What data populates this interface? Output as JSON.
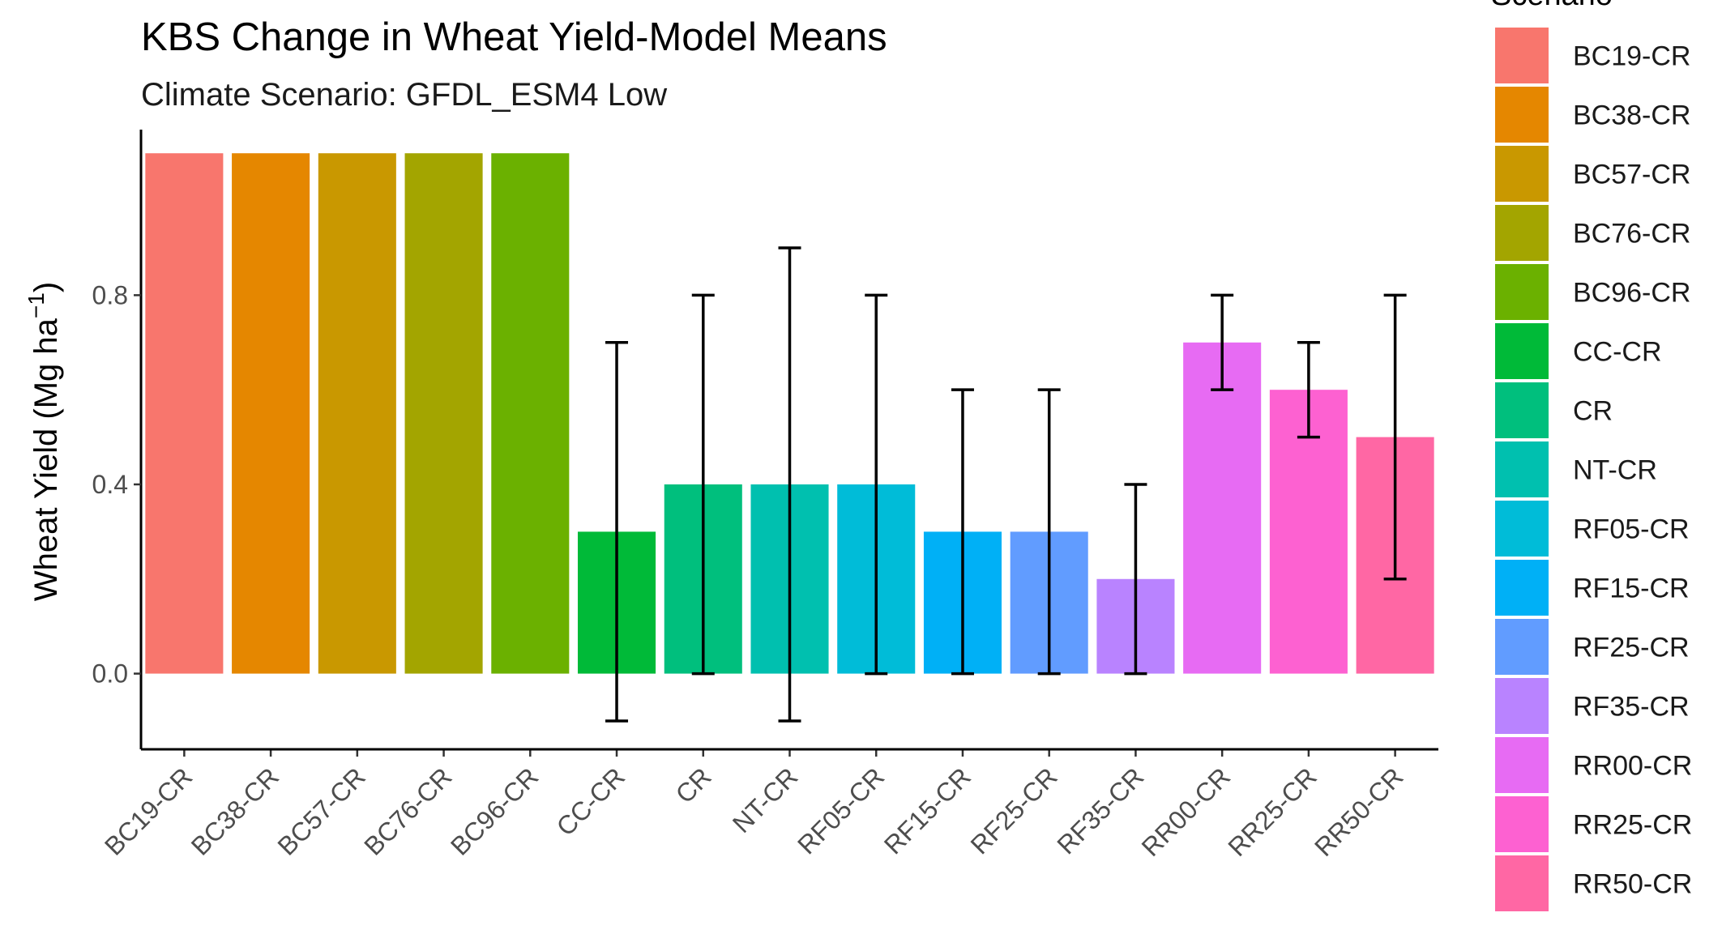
{
  "chart_data": {
    "type": "bar",
    "title": "KBS Change in Wheat Yield-Model Means",
    "subtitle": "Climate Scenario: GFDL_ESM4 Low",
    "xlabel": "",
    "ylabel": "Wheat Yield (Mg ha",
    "ylabel_superscript": "−1",
    "ylabel_close": ")",
    "ylim": [
      -0.16,
      1.15
    ],
    "yticks": [
      "0.0",
      "0.4",
      "0.8"
    ],
    "ytick_values": [
      0.0,
      0.4,
      0.8
    ],
    "grid": false,
    "legend_title": "Scenario",
    "legend_position": "right",
    "categories": [
      "BC19-CR",
      "BC38-CR",
      "BC57-CR",
      "BC76-CR",
      "BC96-CR",
      "CC-CR",
      "CR",
      "NT-CR",
      "RF05-CR",
      "RF15-CR",
      "RF25-CR",
      "RF35-CR",
      "RR00-CR",
      "RR25-CR",
      "RR50-CR"
    ],
    "values": [
      1.1,
      1.1,
      1.1,
      1.1,
      1.1,
      0.3,
      0.4,
      0.4,
      0.4,
      0.3,
      0.3,
      0.2,
      0.7,
      0.6,
      0.5
    ],
    "error_low": [
      null,
      null,
      null,
      null,
      null,
      -0.1,
      0.0,
      -0.1,
      0.0,
      0.0,
      0.0,
      0.0,
      0.6,
      0.5,
      0.2
    ],
    "error_high": [
      null,
      null,
      null,
      null,
      null,
      0.7,
      0.8,
      0.9,
      0.8,
      0.6,
      0.6,
      0.4,
      0.8,
      0.7,
      0.8
    ],
    "colors": [
      "#F8766D",
      "#E58700",
      "#C99800",
      "#A3A500",
      "#6BB100",
      "#00BA38",
      "#00BF7D",
      "#00C0AF",
      "#00BCD8",
      "#00B0F6",
      "#619CFF",
      "#B983FF",
      "#E76BF3",
      "#FD61D1",
      "#FF67A4"
    ]
  }
}
